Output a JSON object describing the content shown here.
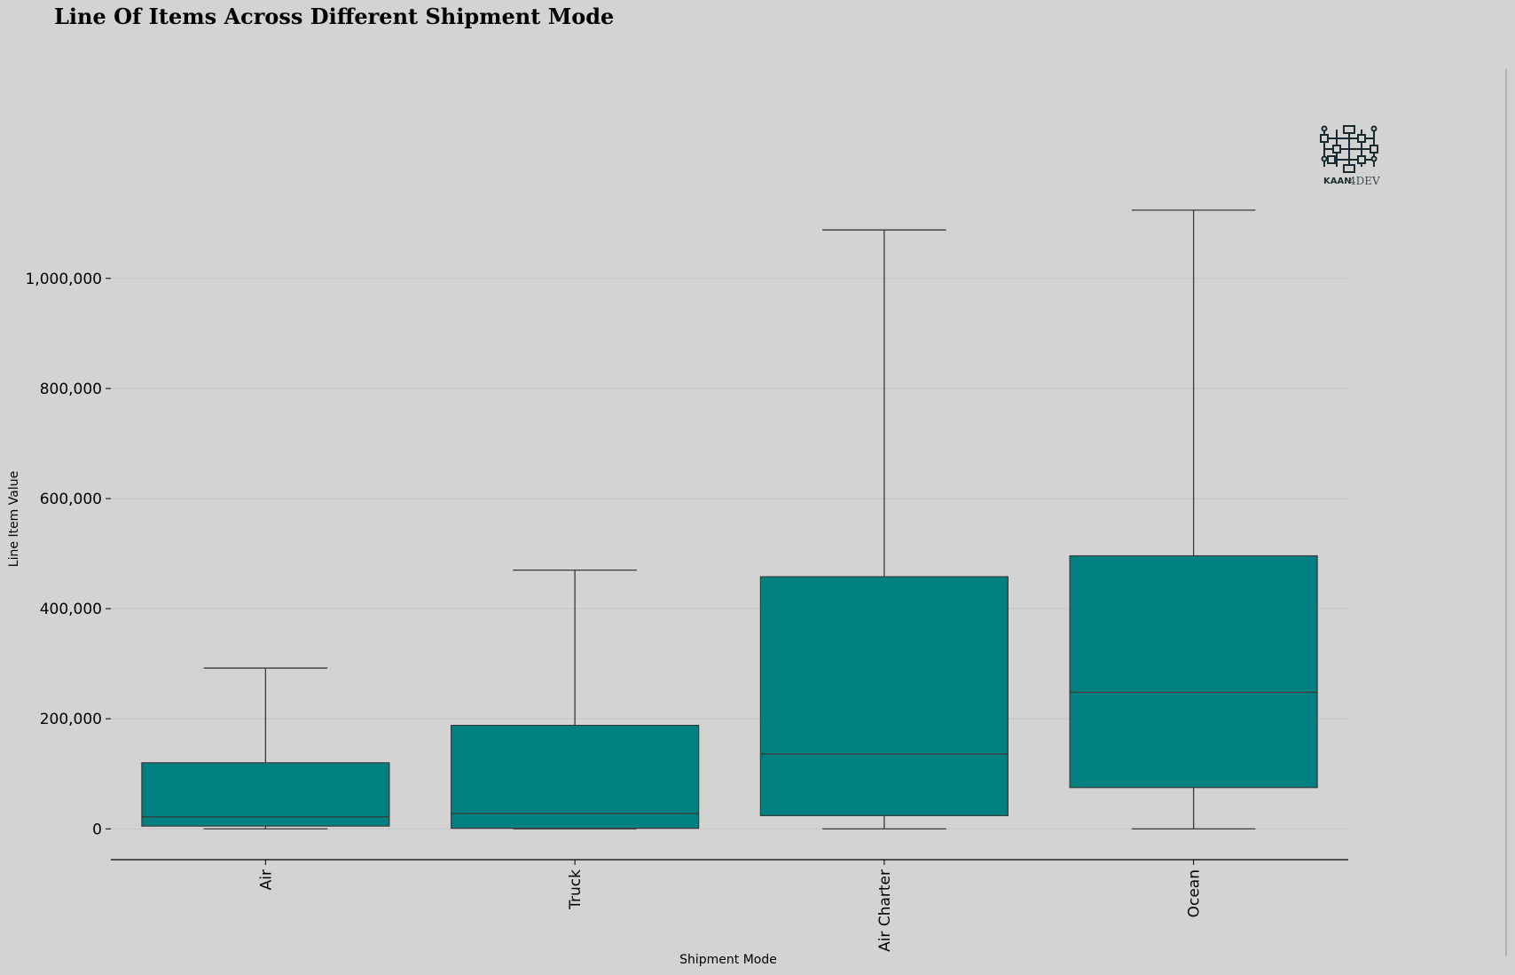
{
  "chart_data": {
    "type": "box",
    "title": "Line Of Items Across Different Shipment Mode",
    "xlabel": "Shipment Mode",
    "ylabel": "Line Item Value",
    "categories": [
      "Air",
      "Truck",
      "Air Charter",
      "Ocean"
    ],
    "boxes": [
      {
        "category": "Air",
        "whisker_low": 0,
        "q1": 5000,
        "median": 22000,
        "q3": 120000,
        "whisker_high": 292000
      },
      {
        "category": "Truck",
        "whisker_low": 0,
        "q1": 1000,
        "median": 28000,
        "q3": 188000,
        "whisker_high": 470000
      },
      {
        "category": "Air Charter",
        "whisker_low": 0,
        "q1": 24000,
        "median": 136000,
        "q3": 458000,
        "whisker_high": 1088000
      },
      {
        "category": "Ocean",
        "whisker_low": 0,
        "q1": 75000,
        "median": 248000,
        "q3": 496000,
        "whisker_high": 1124000
      }
    ],
    "yticks": [
      0,
      200000,
      400000,
      600000,
      800000,
      1000000
    ],
    "ytick_labels": [
      "0",
      "200,000",
      "400,000",
      "600,000",
      "800,000",
      "1,000,000"
    ],
    "ylim": [
      -56000,
      1380000
    ],
    "grid": "horizontal",
    "box_color": "#008080",
    "line_color": "#3a3a3a",
    "background_color": "#d3d3d3"
  },
  "logo": {
    "icon": "circuit-icon",
    "text_part1": "KAAN",
    "text_part2": "4DEV"
  }
}
